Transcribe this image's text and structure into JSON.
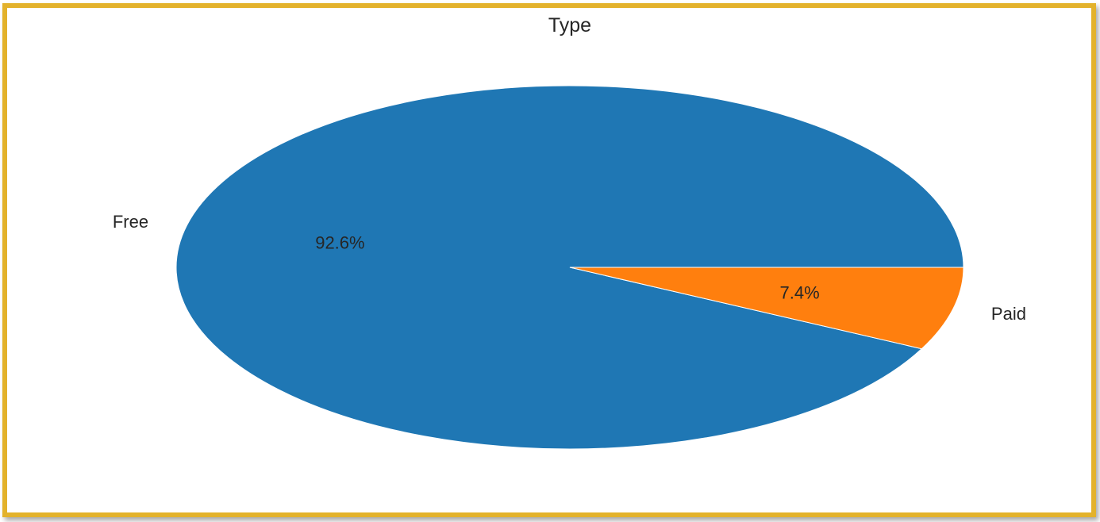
{
  "chart_data": {
    "type": "pie",
    "title": "Type",
    "slices": [
      {
        "label": "Free",
        "value": 92.6,
        "pct_label": "92.6%",
        "color": "#1f77b4"
      },
      {
        "label": "Paid",
        "value": 7.4,
        "pct_label": "7.4%",
        "color": "#ff7f0e"
      }
    ],
    "start_angle_deg": 0,
    "direction": "counterclockwise"
  },
  "colors": {
    "frame_border": "#e3b22b",
    "background": "#ffffff"
  }
}
